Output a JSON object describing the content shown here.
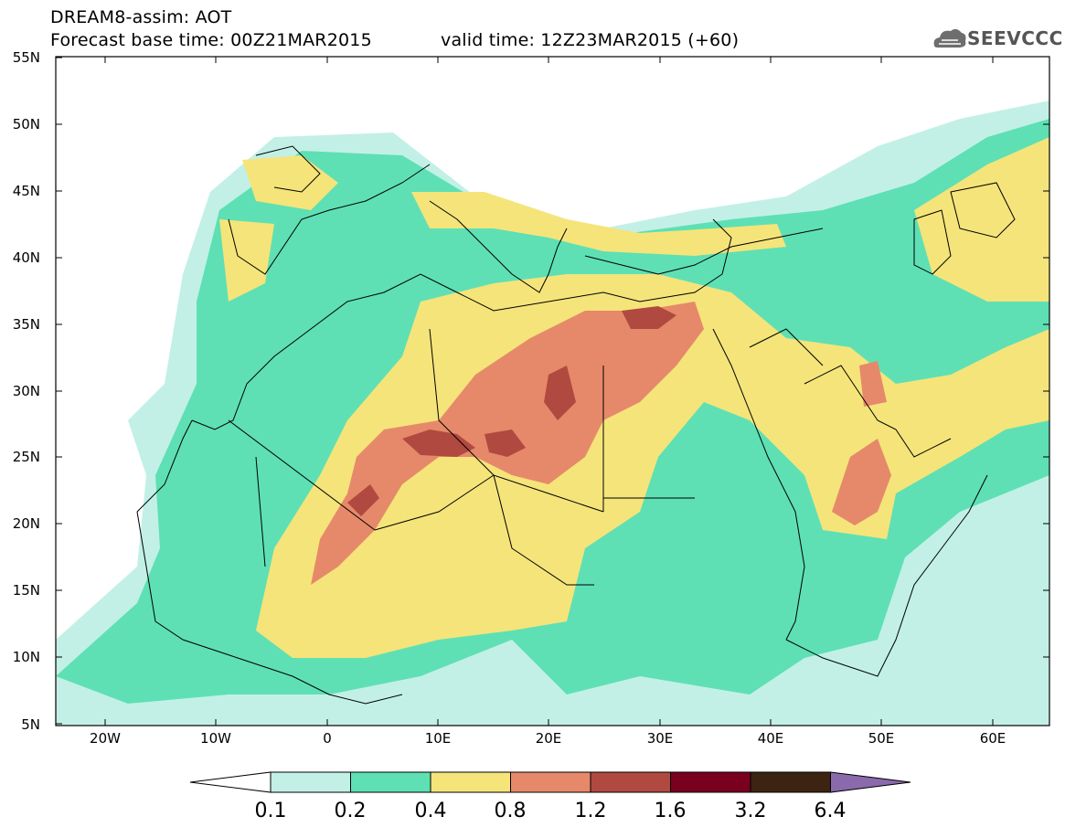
{
  "header": {
    "title_line1": "DREAM8-assim: AOT",
    "title_line2": "Forecast base time: 00Z21MAR2015",
    "title_valid": "valid time: 12Z23MAR2015 (+60)",
    "logo_text": "SEEVCCC",
    "logo_icon": "cloud-icon"
  },
  "axes": {
    "lat_labels": [
      "55N",
      "50N",
      "45N",
      "40N",
      "35N",
      "30N",
      "25N",
      "20N",
      "15N",
      "10N",
      "5N"
    ],
    "lon_labels": [
      "20W",
      "10W",
      "0",
      "10E",
      "20E",
      "30E",
      "40E",
      "50E",
      "60E"
    ]
  },
  "colorbar": {
    "labels": [
      "0.1",
      "0.2",
      "0.4",
      "0.8",
      "1.2",
      "1.6",
      "3.2",
      "6.4"
    ],
    "colors": [
      "#ffffff",
      "#c2f0e6",
      "#5ee0b4",
      "#f5e47a",
      "#e6896a",
      "#b04a40",
      "#7a0020",
      "#3d2312",
      "#8a6aaa"
    ]
  }
}
